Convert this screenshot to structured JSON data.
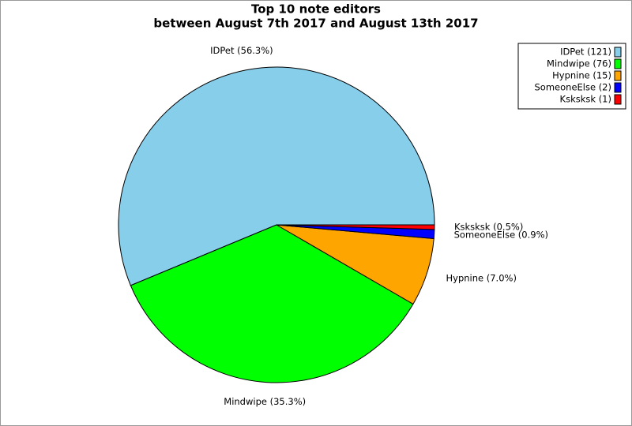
{
  "chart_data": {
    "type": "pie",
    "title": "Top 10 note editors",
    "subtitle": "between August 7th 2017 and August 13th 2017",
    "values": [
      121,
      76,
      15,
      2,
      1
    ],
    "value_labels": [
      "IDPet (56.3%)",
      "Mindwipe (35.3%)",
      "Hypnine (7.0%)",
      "SomeoneElse (0.9%)",
      "Ksksksk (0.5%)"
    ],
    "legend_labels": [
      "IDPet (121)",
      "Mindwipe (76)",
      "Hypnine (15)",
      "SomeoneElse (2)",
      "Ksksksk (1)"
    ],
    "colors": [
      "#87ceeb",
      "#00ff00",
      "#ffa500",
      "#0000ff",
      "#ff0000"
    ],
    "legend": "top-right"
  }
}
